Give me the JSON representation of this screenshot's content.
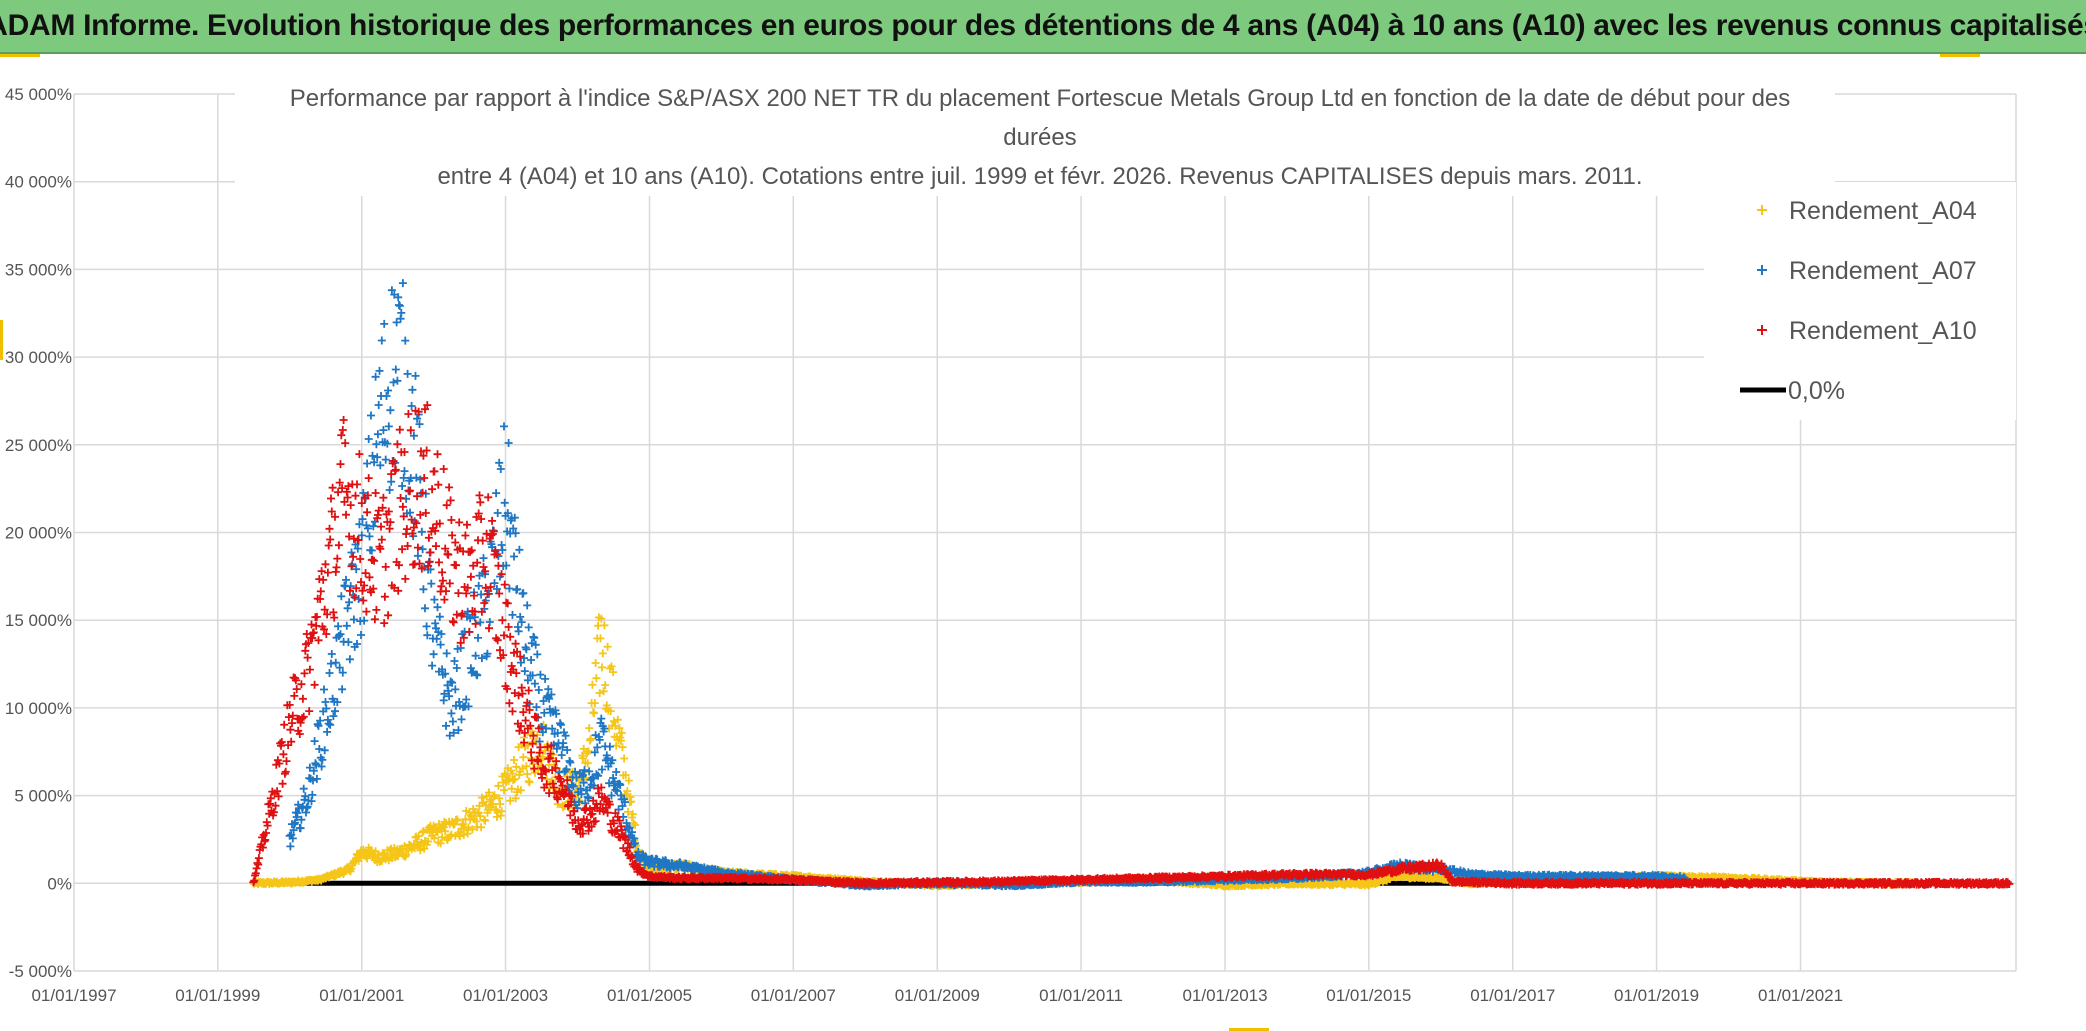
{
  "banner": {
    "title": "ADAM Informe. Evolution historique des performances en euros pour des détentions de 4 ans (A04) à 10 ans (A10) avec les revenus connus capitalisés"
  },
  "chart_data": {
    "type": "scatter",
    "title_lines": [
      "Performance par rapport à l'indice S&P/ASX 200 NET TR  du placement Fortescue Metals Group Ltd en fonction de la date de début pour des",
      "durées",
      "entre 4 (A04) et 10 ans (A10). Cotations entre juil. 1999 et févr. 2026. Revenus CAPITALISES depuis mars. 2011."
    ],
    "x_axis": {
      "type": "date",
      "range": [
        "1997-01-01",
        "2023-12-31"
      ],
      "tick_labels": [
        "01/01/1997",
        "01/01/1999",
        "01/01/2001",
        "01/01/2003",
        "01/01/2005",
        "01/01/2007",
        "01/01/2009",
        "01/01/2011",
        "01/01/2013",
        "01/01/2015",
        "01/01/2017",
        "01/01/2019",
        "01/01/2021"
      ]
    },
    "y_axis": {
      "range": [
        -5000,
        45000
      ],
      "unit": "%",
      "tick_labels": [
        "-5 000%",
        "0%",
        "5 000%",
        "10 000%",
        "15 000%",
        "20 000%",
        "25 000%",
        "30 000%",
        "35 000%",
        "40 000%",
        "45 000%"
      ]
    },
    "grid": true,
    "legend_position": "top-right",
    "series": [
      {
        "name": "Rendement_A04",
        "color": "#f5c518",
        "marker": "plus",
        "points": [
          [
            "1999-07-01",
            0
          ],
          [
            "2000-01-01",
            50
          ],
          [
            "2000-06-01",
            200
          ],
          [
            "2000-11-01",
            800
          ],
          [
            "2001-01-01",
            1800
          ],
          [
            "2001-04-01",
            1500
          ],
          [
            "2001-07-01",
            1700
          ],
          [
            "2001-10-01",
            2200
          ],
          [
            "2002-01-01",
            2800
          ],
          [
            "2002-04-01",
            3000
          ],
          [
            "2002-07-01",
            3600
          ],
          [
            "2002-10-01",
            4200
          ],
          [
            "2003-01-01",
            5200
          ],
          [
            "2003-04-01",
            6800
          ],
          [
            "2003-07-01",
            8200
          ],
          [
            "2003-10-01",
            5500
          ],
          [
            "2004-01-01",
            5200
          ],
          [
            "2004-03-01",
            7800
          ],
          [
            "2004-05-01",
            13800
          ],
          [
            "2004-08-01",
            8000
          ],
          [
            "2004-11-01",
            2000
          ],
          [
            "2005-01-01",
            800
          ],
          [
            "2005-06-01",
            1000
          ],
          [
            "2006-01-01",
            600
          ],
          [
            "2006-06-01",
            500
          ],
          [
            "2007-01-01",
            400
          ],
          [
            "2008-01-01",
            100
          ],
          [
            "2009-01-01",
            -100
          ],
          [
            "2010-01-01",
            0
          ],
          [
            "2011-01-01",
            100
          ],
          [
            "2012-01-01",
            200
          ],
          [
            "2013-01-01",
            -100
          ],
          [
            "2014-01-01",
            0
          ],
          [
            "2015-01-01",
            -50
          ],
          [
            "2015-06-01",
            400
          ],
          [
            "2016-01-01",
            300
          ],
          [
            "2016-06-01",
            0
          ],
          [
            "2017-01-01",
            200
          ],
          [
            "2018-01-01",
            300
          ],
          [
            "2019-01-01",
            400
          ],
          [
            "2020-01-01",
            300
          ],
          [
            "2021-01-01",
            100
          ],
          [
            "2022-01-01",
            0
          ],
          [
            "2022-08-01",
            0
          ]
        ]
      },
      {
        "name": "Rendement_A07",
        "color": "#1f77c4",
        "marker": "plus",
        "points": [
          [
            "2000-01-01",
            2500
          ],
          [
            "2000-04-01",
            5000
          ],
          [
            "2000-07-01",
            9500
          ],
          [
            "2000-10-01",
            14000
          ],
          [
            "2001-01-01",
            18000
          ],
          [
            "2001-04-01",
            26000
          ],
          [
            "2001-07-01",
            30000
          ],
          [
            "2001-10-01",
            24000
          ],
          [
            "2002-01-01",
            14000
          ],
          [
            "2002-04-01",
            10000
          ],
          [
            "2002-07-01",
            13000
          ],
          [
            "2002-10-01",
            16000
          ],
          [
            "2003-01-01",
            22000
          ],
          [
            "2003-04-01",
            14000
          ],
          [
            "2003-07-01",
            10000
          ],
          [
            "2003-10-01",
            8000
          ],
          [
            "2004-01-01",
            5000
          ],
          [
            "2004-03-01",
            6000
          ],
          [
            "2004-05-01",
            8000
          ],
          [
            "2004-08-01",
            5000
          ],
          [
            "2004-11-01",
            1500
          ],
          [
            "2005-01-01",
            1200
          ],
          [
            "2005-06-01",
            1000
          ],
          [
            "2006-01-01",
            600
          ],
          [
            "2007-01-01",
            200
          ],
          [
            "2008-01-01",
            -100
          ],
          [
            "2009-01-01",
            0
          ],
          [
            "2010-01-01",
            -100
          ],
          [
            "2011-01-01",
            100
          ],
          [
            "2012-01-01",
            100
          ],
          [
            "2013-01-01",
            200
          ],
          [
            "2014-01-01",
            300
          ],
          [
            "2015-01-01",
            600
          ],
          [
            "2015-06-01",
            1000
          ],
          [
            "2016-01-01",
            800
          ],
          [
            "2016-06-01",
            500
          ],
          [
            "2017-01-01",
            400
          ],
          [
            "2018-01-01",
            400
          ],
          [
            "2019-01-01",
            400
          ],
          [
            "2019-06-01",
            300
          ]
        ]
      },
      {
        "name": "Rendement_A10",
        "color": "#e01010",
        "marker": "plus",
        "points": [
          [
            "1999-07-01",
            0
          ],
          [
            "2000-01-01",
            9000
          ],
          [
            "2000-04-01",
            12000
          ],
          [
            "2000-07-01",
            17000
          ],
          [
            "2000-10-01",
            22000
          ],
          [
            "2001-01-01",
            20000
          ],
          [
            "2001-04-01",
            18000
          ],
          [
            "2001-07-01",
            21000
          ],
          [
            "2001-10-01",
            23000
          ],
          [
            "2002-01-01",
            22000
          ],
          [
            "2002-04-01",
            18000
          ],
          [
            "2002-07-01",
            17000
          ],
          [
            "2002-10-01",
            19000
          ],
          [
            "2003-01-01",
            14000
          ],
          [
            "2003-04-01",
            10000
          ],
          [
            "2003-07-01",
            7000
          ],
          [
            "2003-10-01",
            6000
          ],
          [
            "2004-01-01",
            3500
          ],
          [
            "2004-03-01",
            3800
          ],
          [
            "2004-05-01",
            4800
          ],
          [
            "2004-08-01",
            3000
          ],
          [
            "2004-11-01",
            800
          ],
          [
            "2005-01-01",
            400
          ],
          [
            "2005-06-01",
            300
          ],
          [
            "2006-01-01",
            300
          ],
          [
            "2007-01-01",
            200
          ],
          [
            "2008-01-01",
            0
          ],
          [
            "2009-01-01",
            50
          ],
          [
            "2010-01-01",
            100
          ],
          [
            "2011-01-01",
            200
          ],
          [
            "2012-01-01",
            300
          ],
          [
            "2013-01-01",
            400
          ],
          [
            "2014-01-01",
            500
          ],
          [
            "2015-01-01",
            500
          ],
          [
            "2015-06-01",
            800
          ],
          [
            "2016-01-01",
            1000
          ],
          [
            "2016-03-01",
            100
          ],
          [
            "2017-01-01",
            0
          ],
          [
            "2018-01-01",
            0
          ],
          [
            "2019-01-01",
            0
          ],
          [
            "2020-01-01",
            0
          ],
          [
            "2021-01-01",
            0
          ],
          [
            "2022-01-01",
            0
          ],
          [
            "2023-12-01",
            0
          ]
        ]
      },
      {
        "name": "0,0%",
        "color": "#000000",
        "marker": "line",
        "points": [
          [
            "2000-01-01",
            0
          ],
          [
            "2016-06-01",
            0
          ]
        ]
      }
    ]
  }
}
